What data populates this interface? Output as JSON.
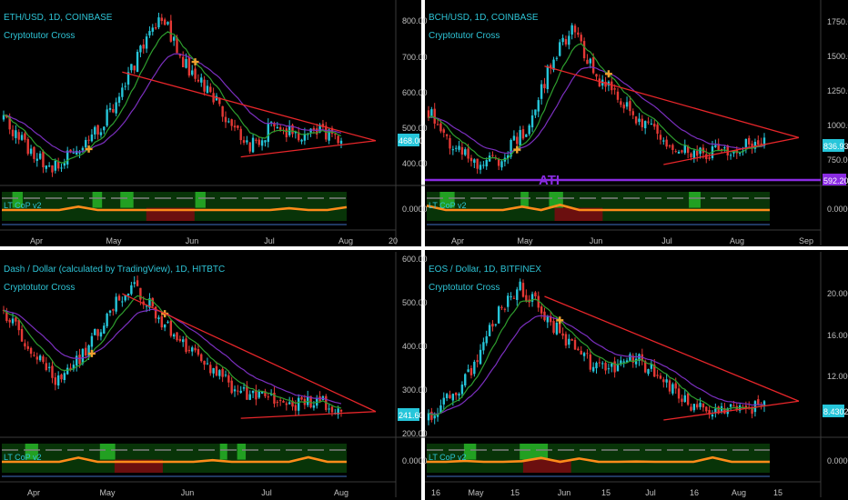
{
  "colors": {
    "background": "#000000",
    "separator": "#ffffff",
    "panel_border": "#3a3a3a",
    "text": "#2ec4d6",
    "axis_text": "#c0c0c0",
    "candle_up": "#26c6da",
    "candle_down": "#e53935",
    "ma_fast": "#2e9e2e",
    "ma_slow": "#7b2fbf",
    "trendline": "#e8262a",
    "cross_marker": "#f0a030",
    "price_tag": "#26c6da",
    "ati_line": "#8a2be2",
    "osc_green": "#0f5f0f",
    "osc_bright_green": "#22a022",
    "osc_red": "#6b0f0f",
    "osc_orange": "#ff8c1a",
    "osc_yellow": "#f2d33a",
    "osc_gray": "#808080",
    "osc_blue": "#3f6fbf"
  },
  "chart_data": [
    {
      "type": "candlestick",
      "title": "ETH/USD, 1D, COINBASE",
      "indicator": "Cryptotutor Cross",
      "oscillator": "LT CoP v2",
      "oscillator_value": "0.0000",
      "x_labels": [
        "Apr",
        "May",
        "Jun",
        "Jul",
        "Aug",
        "20"
      ],
      "y_labels": [
        "800.00",
        "700.00",
        "600.00",
        "500.00",
        "400.00"
      ],
      "ylim": [
        350,
        840
      ],
      "last_price": "468.00",
      "approx_close": [
        520,
        440,
        380,
        410,
        470,
        560,
        700,
        820,
        680,
        600,
        520,
        440,
        500,
        470,
        480,
        468
      ],
      "crosses": 2
    },
    {
      "type": "candlestick",
      "title": "BCH/USD, 1D, COINBASE",
      "indicator": "Cryptotutor Cross",
      "oscillator": "LT CoP v2",
      "oscillator_value": "0.0000",
      "annotation": "ATI",
      "x_labels": [
        "Apr",
        "May",
        "Jun",
        "Jul",
        "Aug",
        "Sep"
      ],
      "y_labels": [
        "1750.00",
        "1500.00",
        "1250.00",
        "1000.00",
        "750.00"
      ],
      "ylim": [
        560,
        1830
      ],
      "last_price": "836.93",
      "ati_level": "592.20",
      "approx_close": [
        1050,
        800,
        660,
        700,
        900,
        1350,
        1700,
        1300,
        1150,
        950,
        800,
        720,
        760,
        800,
        836
      ],
      "crosses": 2
    },
    {
      "type": "candlestick",
      "title": "Dash / Dollar (calculated by TradingView), 1D, HITBTC",
      "indicator": "Cryptotutor Cross",
      "oscillator": "LT CoP v2",
      "oscillator_value": "0.0000",
      "x_labels": [
        "Apr",
        "May",
        "Jun",
        "Jul",
        "Aug"
      ],
      "y_labels": [
        "600.00",
        "500.00",
        "400.00",
        "300.00",
        "200.00"
      ],
      "ylim": [
        185,
        605
      ],
      "last_price": "241.60",
      "approx_close": [
        480,
        380,
        310,
        360,
        470,
        540,
        460,
        390,
        330,
        280,
        260,
        240,
        250,
        241
      ],
      "crosses": 2
    },
    {
      "type": "candlestick",
      "title": "EOS / Dollar, 1D, BITFINEX",
      "indicator": "Cryptotutor Cross",
      "oscillator": "LT CoP v2",
      "oscillator_value": "0.0000",
      "x_labels": [
        "16",
        "May",
        "15",
        "Jun",
        "15",
        "Jul",
        "16",
        "Aug",
        "15"
      ],
      "y_labels": [
        "20.0000",
        "16.0000",
        "12.0000"
      ],
      "ylim": [
        6.5,
        22.5
      ],
      "last_price": "8.4302",
      "approx_close": [
        7.5,
        9.5,
        12,
        17,
        20,
        18,
        15,
        13,
        12,
        13.5,
        12,
        10,
        8.5,
        8.0,
        8.5,
        8.43
      ],
      "crosses": 2
    }
  ]
}
